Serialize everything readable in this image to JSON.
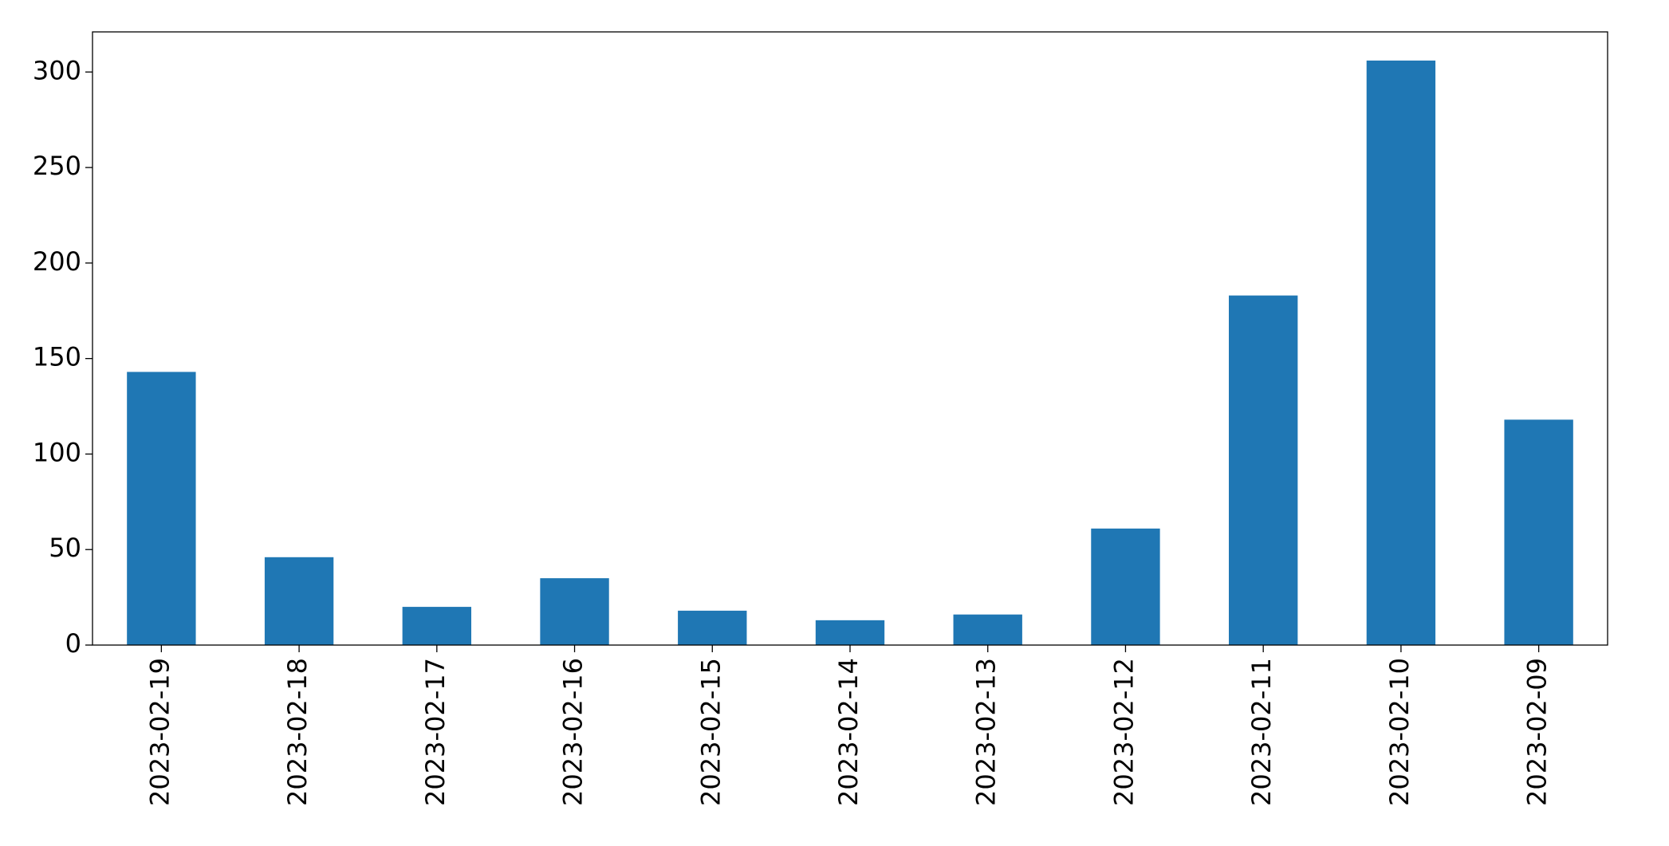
{
  "chart_data": {
    "type": "bar",
    "categories": [
      "2023-02-19",
      "2023-02-18",
      "2023-02-17",
      "2023-02-16",
      "2023-02-15",
      "2023-02-14",
      "2023-02-13",
      "2023-02-12",
      "2023-02-11",
      "2023-02-10",
      "2023-02-09"
    ],
    "values": [
      143,
      46,
      20,
      35,
      18,
      13,
      16,
      61,
      183,
      306,
      118
    ],
    "color": "#1f77b4",
    "ylim": [
      0,
      321
    ],
    "yticks": [
      0,
      50,
      100,
      150,
      200,
      250,
      300
    ],
    "grid": false
  }
}
